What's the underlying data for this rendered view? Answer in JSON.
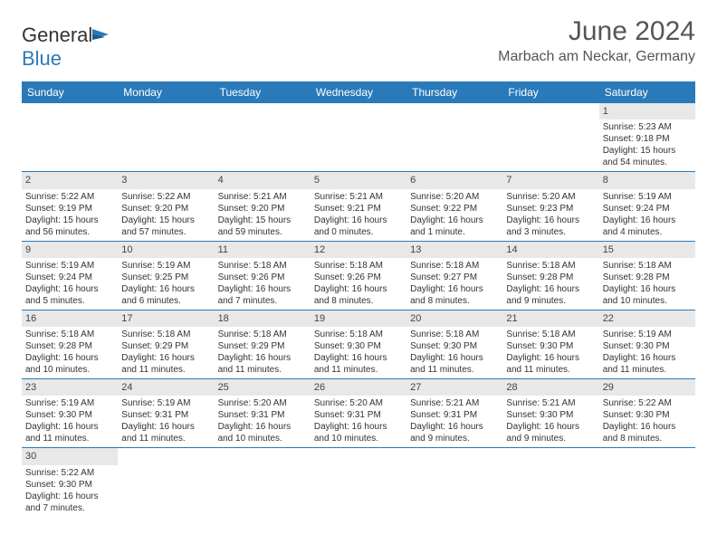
{
  "brand": {
    "name_part1": "General",
    "name_part2": "Blue"
  },
  "title": "June 2024",
  "location": "Marbach am Neckar, Germany",
  "colors": {
    "header_bg": "#2a7ab9",
    "row_divider": "#2a7ab9",
    "daynum_bg": "#e8e8e8",
    "text": "#333333"
  },
  "fonts": {
    "title_size": 30,
    "location_size": 16,
    "header_size": 12,
    "cell_size": 10
  },
  "day_headers": [
    "Sunday",
    "Monday",
    "Tuesday",
    "Wednesday",
    "Thursday",
    "Friday",
    "Saturday"
  ],
  "weeks": [
    [
      null,
      null,
      null,
      null,
      null,
      null,
      {
        "n": "1",
        "sr": "5:23 AM",
        "ss": "9:18 PM",
        "dl": "15 hours and 54 minutes."
      }
    ],
    [
      {
        "n": "2",
        "sr": "5:22 AM",
        "ss": "9:19 PM",
        "dl": "15 hours and 56 minutes."
      },
      {
        "n": "3",
        "sr": "5:22 AM",
        "ss": "9:20 PM",
        "dl": "15 hours and 57 minutes."
      },
      {
        "n": "4",
        "sr": "5:21 AM",
        "ss": "9:20 PM",
        "dl": "15 hours and 59 minutes."
      },
      {
        "n": "5",
        "sr": "5:21 AM",
        "ss": "9:21 PM",
        "dl": "16 hours and 0 minutes."
      },
      {
        "n": "6",
        "sr": "5:20 AM",
        "ss": "9:22 PM",
        "dl": "16 hours and 1 minute."
      },
      {
        "n": "7",
        "sr": "5:20 AM",
        "ss": "9:23 PM",
        "dl": "16 hours and 3 minutes."
      },
      {
        "n": "8",
        "sr": "5:19 AM",
        "ss": "9:24 PM",
        "dl": "16 hours and 4 minutes."
      }
    ],
    [
      {
        "n": "9",
        "sr": "5:19 AM",
        "ss": "9:24 PM",
        "dl": "16 hours and 5 minutes."
      },
      {
        "n": "10",
        "sr": "5:19 AM",
        "ss": "9:25 PM",
        "dl": "16 hours and 6 minutes."
      },
      {
        "n": "11",
        "sr": "5:18 AM",
        "ss": "9:26 PM",
        "dl": "16 hours and 7 minutes."
      },
      {
        "n": "12",
        "sr": "5:18 AM",
        "ss": "9:26 PM",
        "dl": "16 hours and 8 minutes."
      },
      {
        "n": "13",
        "sr": "5:18 AM",
        "ss": "9:27 PM",
        "dl": "16 hours and 8 minutes."
      },
      {
        "n": "14",
        "sr": "5:18 AM",
        "ss": "9:28 PM",
        "dl": "16 hours and 9 minutes."
      },
      {
        "n": "15",
        "sr": "5:18 AM",
        "ss": "9:28 PM",
        "dl": "16 hours and 10 minutes."
      }
    ],
    [
      {
        "n": "16",
        "sr": "5:18 AM",
        "ss": "9:28 PM",
        "dl": "16 hours and 10 minutes."
      },
      {
        "n": "17",
        "sr": "5:18 AM",
        "ss": "9:29 PM",
        "dl": "16 hours and 11 minutes."
      },
      {
        "n": "18",
        "sr": "5:18 AM",
        "ss": "9:29 PM",
        "dl": "16 hours and 11 minutes."
      },
      {
        "n": "19",
        "sr": "5:18 AM",
        "ss": "9:30 PM",
        "dl": "16 hours and 11 minutes."
      },
      {
        "n": "20",
        "sr": "5:18 AM",
        "ss": "9:30 PM",
        "dl": "16 hours and 11 minutes."
      },
      {
        "n": "21",
        "sr": "5:18 AM",
        "ss": "9:30 PM",
        "dl": "16 hours and 11 minutes."
      },
      {
        "n": "22",
        "sr": "5:19 AM",
        "ss": "9:30 PM",
        "dl": "16 hours and 11 minutes."
      }
    ],
    [
      {
        "n": "23",
        "sr": "5:19 AM",
        "ss": "9:30 PM",
        "dl": "16 hours and 11 minutes."
      },
      {
        "n": "24",
        "sr": "5:19 AM",
        "ss": "9:31 PM",
        "dl": "16 hours and 11 minutes."
      },
      {
        "n": "25",
        "sr": "5:20 AM",
        "ss": "9:31 PM",
        "dl": "16 hours and 10 minutes."
      },
      {
        "n": "26",
        "sr": "5:20 AM",
        "ss": "9:31 PM",
        "dl": "16 hours and 10 minutes."
      },
      {
        "n": "27",
        "sr": "5:21 AM",
        "ss": "9:31 PM",
        "dl": "16 hours and 9 minutes."
      },
      {
        "n": "28",
        "sr": "5:21 AM",
        "ss": "9:30 PM",
        "dl": "16 hours and 9 minutes."
      },
      {
        "n": "29",
        "sr": "5:22 AM",
        "ss": "9:30 PM",
        "dl": "16 hours and 8 minutes."
      }
    ],
    [
      {
        "n": "30",
        "sr": "5:22 AM",
        "ss": "9:30 PM",
        "dl": "16 hours and 7 minutes."
      },
      null,
      null,
      null,
      null,
      null,
      null
    ]
  ],
  "labels": {
    "sunrise": "Sunrise: ",
    "sunset": "Sunset: ",
    "daylight": "Daylight: "
  }
}
